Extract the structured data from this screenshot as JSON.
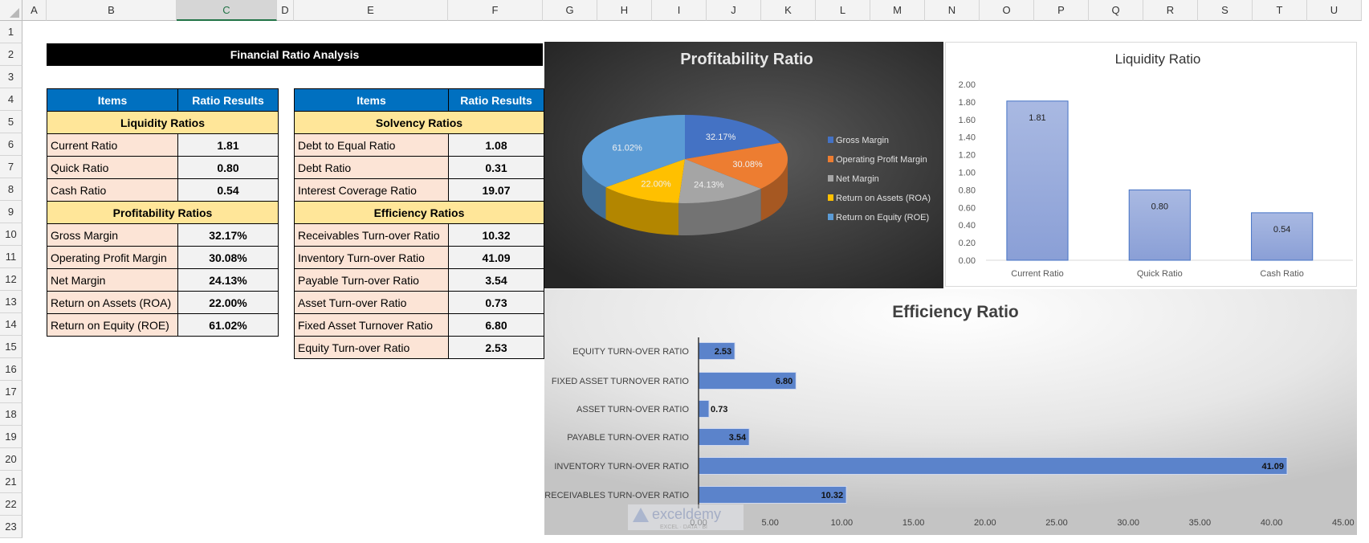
{
  "sheet": {
    "columns": [
      "A",
      "B",
      "C",
      "D",
      "E",
      "F",
      "G",
      "H",
      "I",
      "J",
      "K",
      "L",
      "M",
      "N",
      "O",
      "P",
      "Q",
      "R",
      "S",
      "T",
      "U"
    ],
    "selected_column": "C",
    "rows": [
      "1",
      "2",
      "3",
      "4",
      "5",
      "6",
      "7",
      "8",
      "9",
      "10",
      "11",
      "12",
      "13",
      "14",
      "15",
      "16",
      "17",
      "18",
      "19",
      "20",
      "21",
      "22",
      "23"
    ]
  },
  "title": "Financial Ratio Analysis",
  "table_left": {
    "headers": [
      "Items",
      "Ratio Results"
    ],
    "rows": [
      {
        "section": "Liquidity Ratios"
      },
      {
        "label": "Current Ratio",
        "value": "1.81"
      },
      {
        "label": "Quick Ratio",
        "value": "0.80"
      },
      {
        "label": "Cash Ratio",
        "value": "0.54"
      },
      {
        "section": "Profitability Ratios"
      },
      {
        "label": "Gross Margin",
        "value": "32.17%"
      },
      {
        "label": "Operating Profit Margin",
        "value": "30.08%"
      },
      {
        "label": "Net Margin",
        "value": "24.13%"
      },
      {
        "label": "Return on Assets (ROA)",
        "value": "22.00%"
      },
      {
        "label": "Return on Equity (ROE)",
        "value": "61.02%"
      }
    ]
  },
  "table_right": {
    "headers": [
      "Items",
      "Ratio Results"
    ],
    "rows": [
      {
        "section": "Solvency Ratios"
      },
      {
        "label": "Debt to Equal Ratio",
        "value": "1.08"
      },
      {
        "label": "Debt Ratio",
        "value": "0.31"
      },
      {
        "label": "Interest Coverage Ratio",
        "value": "19.07"
      },
      {
        "section": "Efficiency Ratios"
      },
      {
        "label": "Receivables Turn-over Ratio",
        "value": "10.32"
      },
      {
        "label": "Inventory Turn-over Ratio",
        "value": "41.09"
      },
      {
        "label": "Payable Turn-over Ratio",
        "value": "3.54"
      },
      {
        "label": "Asset Turn-over Ratio",
        "value": "0.73"
      },
      {
        "label": "Fixed Asset Turnover Ratio",
        "value": "6.80"
      },
      {
        "label": "Equity Turn-over Ratio",
        "value": "2.53"
      }
    ]
  },
  "watermark": {
    "brand": "exceldemy",
    "tagline": "EXCEL · DATA · BI"
  },
  "chart_data": [
    {
      "type": "pie",
      "title": "Profitability Ratio",
      "categories": [
        "Gross Margin",
        "Operating Profit Margin",
        "Net Margin",
        "Return on Assets (ROA)",
        "Return on Equity (ROE)"
      ],
      "values": [
        32.17,
        30.08,
        24.13,
        22.0,
        61.02
      ],
      "data_labels": [
        "32.17%",
        "30.08%",
        "24.13%",
        "22.00%",
        "61.02%"
      ],
      "colors": [
        "#4472C4",
        "#ED7D31",
        "#A5A5A5",
        "#FFC000",
        "#5B9BD5"
      ],
      "legend": "right"
    },
    {
      "type": "bar",
      "title": "Liquidity Ratio",
      "categories": [
        "Current Ratio",
        "Quick Ratio",
        "Cash Ratio"
      ],
      "values": [
        1.81,
        0.8,
        0.54
      ],
      "data_labels": [
        "1.81",
        "0.80",
        "0.54"
      ],
      "ylim": [
        0,
        2
      ],
      "yticks": [
        "0.00",
        "0.20",
        "0.40",
        "0.60",
        "0.80",
        "1.00",
        "1.20",
        "1.40",
        "1.60",
        "1.80",
        "2.00"
      ],
      "color": "#8FA7DC"
    },
    {
      "type": "bar",
      "orientation": "horizontal",
      "title": "Efficiency Ratio",
      "categories": [
        "EQUITY TURN-OVER RATIO",
        "FIXED ASSET TURNOVER RATIO",
        "ASSET TURN-OVER RATIO",
        "PAYABLE TURN-OVER RATIO",
        "INVENTORY TURN-OVER RATIO",
        "RECEIVABLES TURN-OVER RATIO"
      ],
      "values": [
        2.53,
        6.8,
        0.73,
        3.54,
        41.09,
        10.32
      ],
      "data_labels": [
        "2.53",
        "6.80",
        "0.73",
        "3.54",
        "41.09",
        "10.32"
      ],
      "xlim": [
        0,
        45
      ],
      "xticks": [
        "0.00",
        "5.00",
        "10.00",
        "15.00",
        "20.00",
        "25.00",
        "30.00",
        "35.00",
        "40.00",
        "45.00"
      ],
      "color": "#5B83CB"
    }
  ]
}
